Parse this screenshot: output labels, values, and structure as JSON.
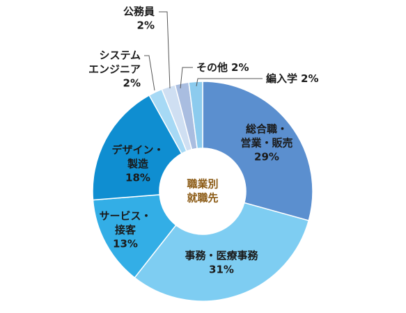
{
  "chart_data": {
    "type": "donut",
    "center_label": [
      "職業別",
      "就職先"
    ],
    "categories": [
      [
        "総合職・",
        "営業・販売"
      ],
      [
        "事務・医療事務"
      ],
      [
        "サービス・",
        "接客"
      ],
      [
        "デザイン・",
        "製造"
      ],
      [
        "システム",
        "エンジニア"
      ],
      [
        "公務員"
      ],
      [
        "その他"
      ],
      [
        "編入学"
      ]
    ],
    "values": [
      29,
      31,
      13,
      18,
      2,
      2,
      2,
      2
    ],
    "value_labels": [
      "29%",
      "31%",
      "13%",
      "18%",
      "2%",
      "2%",
      "2%",
      "2%"
    ],
    "colors": [
      "#5b8fcf",
      "#7ecdf2",
      "#33aee6",
      "#0f8ed1",
      "#a6d9f5",
      "#cfdff2",
      "#a9bde0",
      "#8ccbee"
    ]
  }
}
